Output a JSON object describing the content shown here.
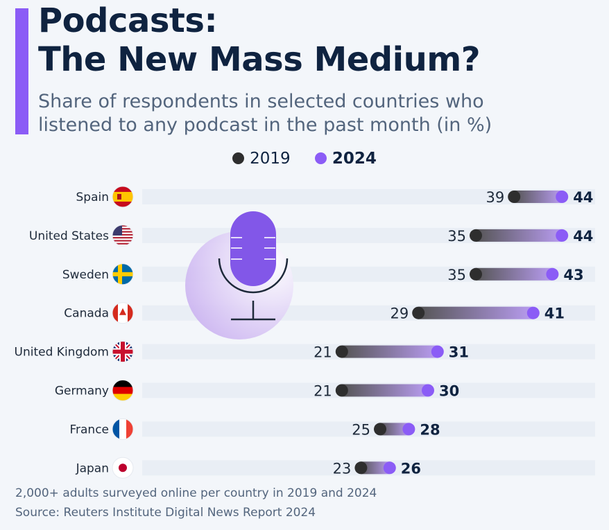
{
  "chart_data": {
    "type": "dumbbell",
    "title": "Podcasts:\nThe New Mass Medium?",
    "title_lines": [
      "Podcasts:",
      "The New Mass Medium?"
    ],
    "subtitle_lines": [
      "Share of respondents in selected countries who",
      "listened to any podcast in the past month (in %)"
    ],
    "legend": [
      {
        "name": "2019",
        "color": "#2e2e2e"
      },
      {
        "name": "2024",
        "color": "#8b5cf6"
      }
    ],
    "legend_placement": "top-center",
    "categories": [
      "Spain",
      "United States",
      "Sweden",
      "Canada",
      "United Kingdom",
      "Germany",
      "France",
      "Japan"
    ],
    "series": [
      {
        "name": "2019",
        "values": [
          39,
          35,
          35,
          29,
          21,
          21,
          25,
          23
        ]
      },
      {
        "name": "2024",
        "values": [
          44,
          44,
          43,
          41,
          31,
          30,
          28,
          26
        ]
      }
    ],
    "flags": [
      "spain-flag-icon",
      "us-flag-icon",
      "sweden-flag-icon",
      "canada-flag-icon",
      "uk-flag-icon",
      "germany-flag-icon",
      "france-flag-icon",
      "japan-flag-icon"
    ],
    "grid": false,
    "illustration": "microphone-icon"
  },
  "footer": {
    "note": "2,000+ adults surveyed online per country in 2019 and 2024",
    "source": "Source: Reuters Institute Digital News Report 2024"
  }
}
